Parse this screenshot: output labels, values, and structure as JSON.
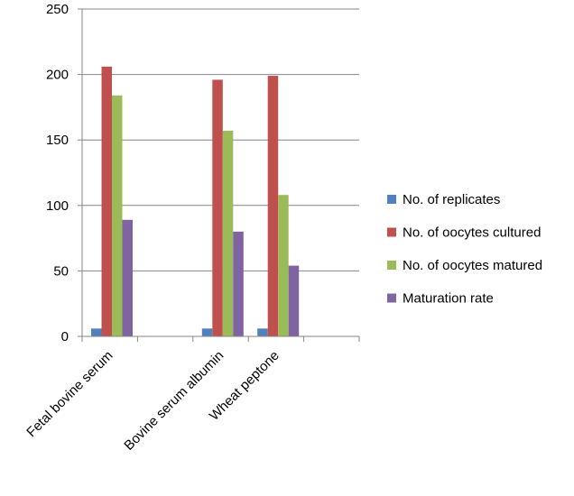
{
  "chart_data": {
    "type": "bar",
    "categories": [
      "Fetal bovine serum",
      "",
      "Bovine serum albumin",
      "Wheat peptone",
      ""
    ],
    "series": [
      {
        "name": "No. of replicates",
        "color": "#4f81bd",
        "values": [
          6,
          null,
          6,
          6,
          null
        ]
      },
      {
        "name": "No. of oocytes cultured",
        "color": "#c0504d",
        "values": [
          206,
          null,
          196,
          199,
          null
        ]
      },
      {
        "name": "No. of oocytes matured",
        "color": "#9bbb59",
        "values": [
          184,
          null,
          157,
          108,
          null
        ]
      },
      {
        "name": "Maturation rate",
        "color": "#8064a2",
        "values": [
          89,
          null,
          80,
          54,
          null
        ]
      }
    ],
    "ylim": [
      0,
      250
    ],
    "yticks": [
      0,
      50,
      100,
      150,
      200,
      250
    ],
    "grid": true,
    "legend_position": "right",
    "title": "",
    "xlabel": "",
    "ylabel": ""
  }
}
